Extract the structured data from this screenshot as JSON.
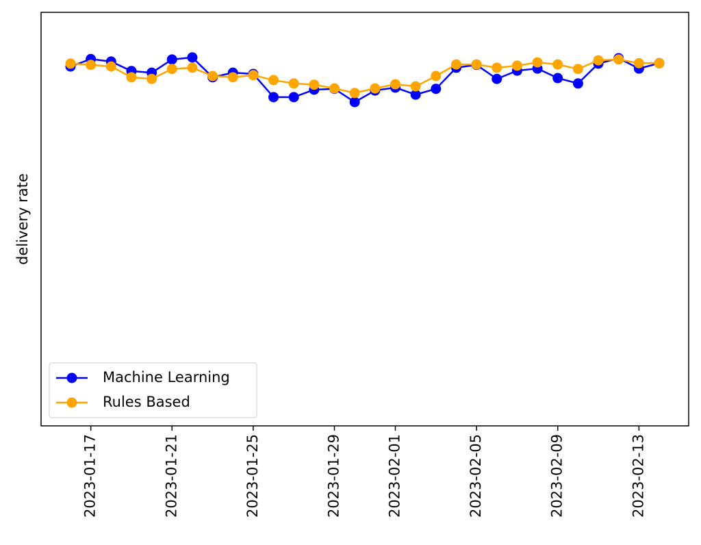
{
  "chart_data": {
    "type": "line",
    "y_label": "delivery rate",
    "x": [
      "2023-01-16",
      "2023-01-17",
      "2023-01-18",
      "2023-01-19",
      "2023-01-20",
      "2023-01-21",
      "2023-01-22",
      "2023-01-23",
      "2023-01-24",
      "2023-01-25",
      "2023-01-26",
      "2023-01-27",
      "2023-01-28",
      "2023-01-29",
      "2023-01-30",
      "2023-01-31",
      "2023-02-01",
      "2023-02-02",
      "2023-02-03",
      "2023-02-04",
      "2023-02-05",
      "2023-02-06",
      "2023-02-07",
      "2023-02-08",
      "2023-02-09",
      "2023-02-10",
      "2023-02-11",
      "2023-02-12",
      "2023-02-13",
      "2023-02-14"
    ],
    "xticks": [
      "2023-01-17",
      "2023-01-21",
      "2023-01-25",
      "2023-01-29",
      "2023-02-01",
      "2023-02-05",
      "2023-02-09",
      "2023-02-13"
    ],
    "ylim": [
      0,
      1
    ],
    "legend": "lower left",
    "series": [
      {
        "name": "Machine Learning",
        "color": "#0000ff",
        "values": [
          0.869,
          0.887,
          0.881,
          0.858,
          0.854,
          0.886,
          0.891,
          0.843,
          0.854,
          0.851,
          0.795,
          0.795,
          0.813,
          0.815,
          0.783,
          0.811,
          0.818,
          0.801,
          0.815,
          0.866,
          0.873,
          0.839,
          0.859,
          0.864,
          0.841,
          0.828,
          0.876,
          0.889,
          0.864,
          0.877
        ]
      },
      {
        "name": "Rules Based",
        "color": "#ffa500",
        "values": [
          0.876,
          0.873,
          0.869,
          0.843,
          0.839,
          0.863,
          0.866,
          0.846,
          0.843,
          0.848,
          0.836,
          0.828,
          0.825,
          0.816,
          0.805,
          0.816,
          0.826,
          0.821,
          0.846,
          0.874,
          0.874,
          0.866,
          0.871,
          0.879,
          0.874,
          0.863,
          0.884,
          0.886,
          0.877,
          0.877
        ]
      }
    ]
  }
}
